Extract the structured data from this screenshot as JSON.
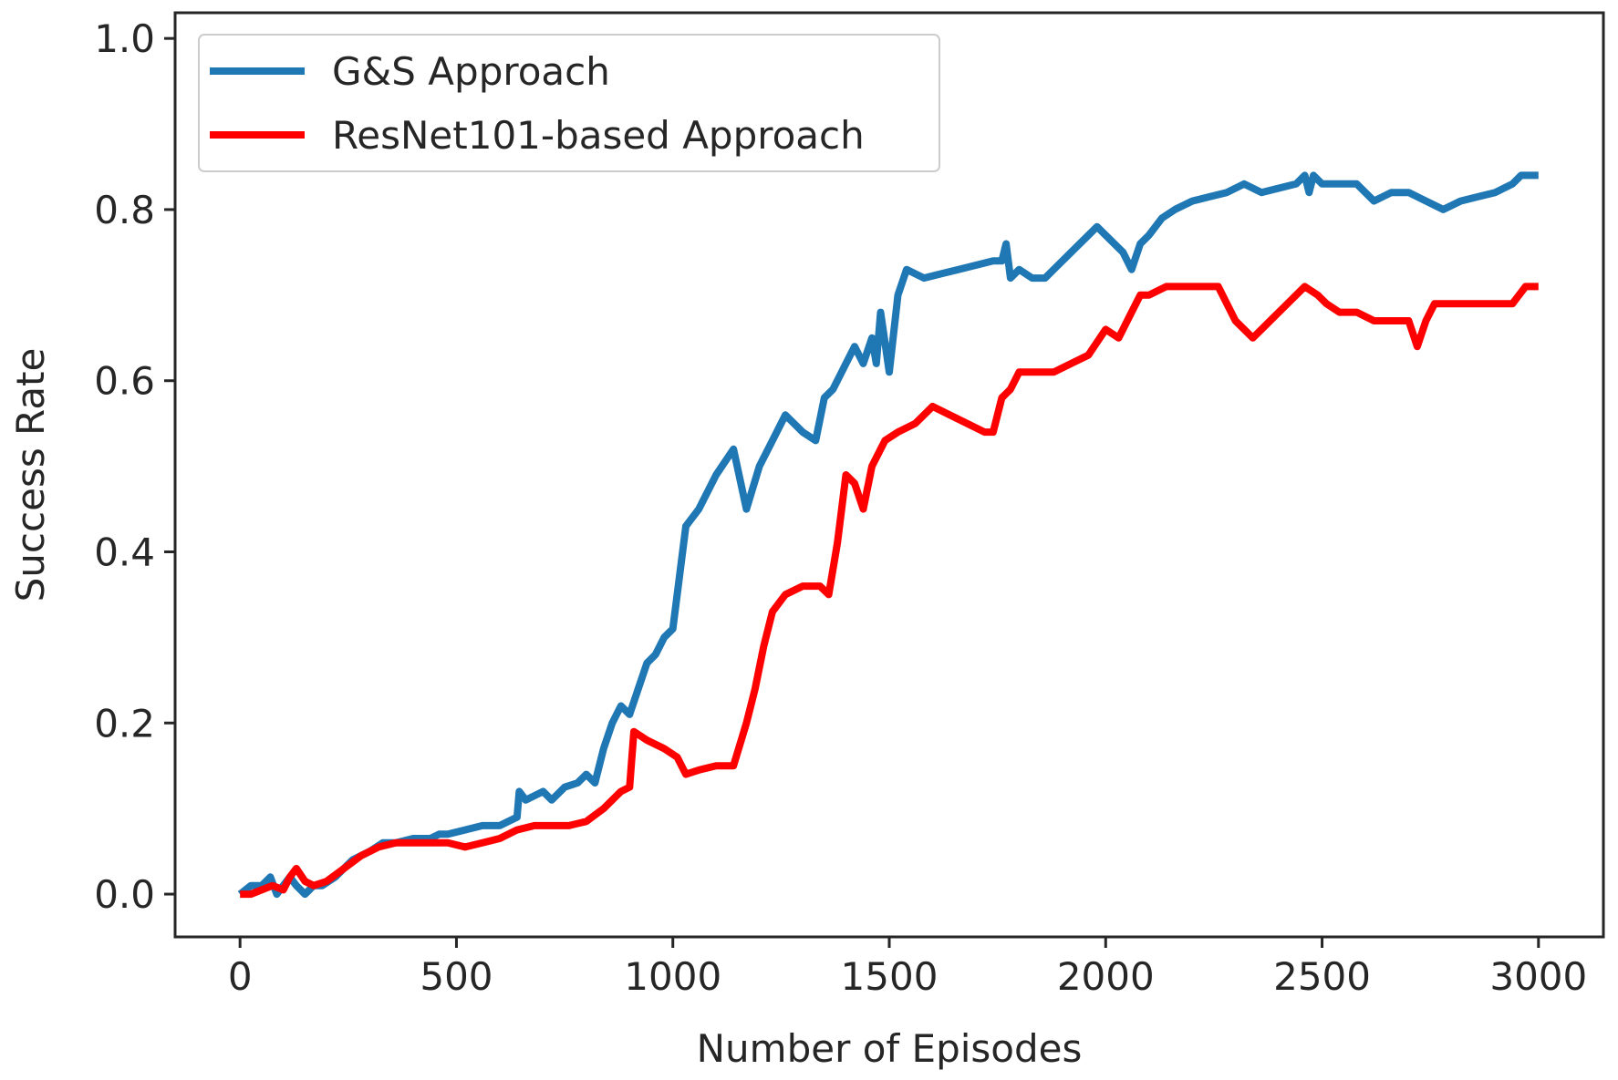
{
  "chart_data": {
    "type": "line",
    "title": "",
    "xlabel": "Number of Episodes",
    "ylabel": "Success Rate",
    "xlim": [
      -150,
      3150
    ],
    "ylim": [
      -0.05,
      1.03
    ],
    "xticks": [
      0,
      500,
      1000,
      1500,
      2000,
      2500,
      3000
    ],
    "xtick_labels": [
      "0",
      "500",
      "1000",
      "1500",
      "2000",
      "2500",
      "3000"
    ],
    "yticks": [
      0.0,
      0.2,
      0.4,
      0.6,
      0.8,
      1.0
    ],
    "ytick_labels": [
      "0.0",
      "0.2",
      "0.4",
      "0.6",
      "0.8",
      "1.0"
    ],
    "grid": false,
    "legend_position": "top-left",
    "series": [
      {
        "name": "G&S Approach",
        "color": "#1f77b4",
        "x": [
          0,
          25,
          50,
          70,
          85,
          100,
          115,
          130,
          150,
          170,
          190,
          220,
          260,
          300,
          330,
          360,
          400,
          440,
          460,
          480,
          520,
          560,
          600,
          640,
          645,
          660,
          700,
          720,
          750,
          780,
          800,
          820,
          840,
          860,
          880,
          900,
          920,
          940,
          960,
          980,
          1000,
          1030,
          1060,
          1100,
          1140,
          1170,
          1200,
          1230,
          1260,
          1300,
          1330,
          1350,
          1370,
          1390,
          1400,
          1420,
          1440,
          1460,
          1470,
          1480,
          1500,
          1520,
          1540,
          1580,
          1620,
          1660,
          1700,
          1740,
          1760,
          1770,
          1780,
          1800,
          1830,
          1860,
          1880,
          1900,
          1920,
          1940,
          1960,
          1980,
          2000,
          2020,
          2040,
          2060,
          2080,
          2100,
          2130,
          2160,
          2200,
          2240,
          2280,
          2320,
          2360,
          2400,
          2440,
          2460,
          2470,
          2480,
          2500,
          2540,
          2580,
          2620,
          2660,
          2700,
          2740,
          2780,
          2820,
          2860,
          2900,
          2940,
          2960,
          2980,
          3000
        ],
        "y": [
          0.0,
          0.01,
          0.01,
          0.02,
          0.0,
          0.01,
          0.02,
          0.01,
          0.0,
          0.01,
          0.01,
          0.02,
          0.04,
          0.05,
          0.06,
          0.06,
          0.065,
          0.065,
          0.07,
          0.07,
          0.075,
          0.08,
          0.08,
          0.09,
          0.12,
          0.11,
          0.12,
          0.11,
          0.125,
          0.13,
          0.14,
          0.13,
          0.17,
          0.2,
          0.22,
          0.21,
          0.24,
          0.27,
          0.28,
          0.3,
          0.31,
          0.43,
          0.45,
          0.49,
          0.52,
          0.45,
          0.5,
          0.53,
          0.56,
          0.54,
          0.53,
          0.58,
          0.59,
          0.61,
          0.62,
          0.64,
          0.62,
          0.65,
          0.62,
          0.68,
          0.61,
          0.7,
          0.73,
          0.72,
          0.725,
          0.73,
          0.735,
          0.74,
          0.74,
          0.76,
          0.72,
          0.73,
          0.72,
          0.72,
          0.73,
          0.74,
          0.75,
          0.76,
          0.77,
          0.78,
          0.77,
          0.76,
          0.75,
          0.73,
          0.76,
          0.77,
          0.79,
          0.8,
          0.81,
          0.815,
          0.82,
          0.83,
          0.82,
          0.825,
          0.83,
          0.84,
          0.82,
          0.84,
          0.83,
          0.83,
          0.83,
          0.81,
          0.82,
          0.82,
          0.81,
          0.8,
          0.81,
          0.815,
          0.82,
          0.83,
          0.84,
          0.84,
          0.84
        ]
      },
      {
        "name": "ResNet101-based Approach",
        "color": "#ff0000",
        "x": [
          0,
          25,
          50,
          75,
          100,
          115,
          130,
          150,
          170,
          200,
          240,
          280,
          320,
          360,
          400,
          440,
          480,
          520,
          560,
          600,
          640,
          680,
          720,
          760,
          800,
          840,
          880,
          900,
          910,
          940,
          980,
          1010,
          1030,
          1060,
          1100,
          1140,
          1170,
          1190,
          1210,
          1230,
          1260,
          1300,
          1340,
          1360,
          1380,
          1400,
          1420,
          1440,
          1460,
          1490,
          1520,
          1560,
          1600,
          1640,
          1680,
          1720,
          1740,
          1760,
          1780,
          1800,
          1840,
          1880,
          1920,
          1960,
          2000,
          2030,
          2060,
          2080,
          2100,
          2140,
          2180,
          2220,
          2260,
          2300,
          2340,
          2380,
          2420,
          2460,
          2490,
          2510,
          2540,
          2580,
          2620,
          2660,
          2700,
          2720,
          2740,
          2760,
          2780,
          2820,
          2860,
          2900,
          2940,
          2970,
          3000
        ],
        "y": [
          0.0,
          0.0,
          0.005,
          0.01,
          0.005,
          0.02,
          0.03,
          0.015,
          0.01,
          0.015,
          0.03,
          0.045,
          0.055,
          0.06,
          0.06,
          0.06,
          0.06,
          0.055,
          0.06,
          0.065,
          0.075,
          0.08,
          0.08,
          0.08,
          0.085,
          0.1,
          0.12,
          0.125,
          0.19,
          0.18,
          0.17,
          0.16,
          0.14,
          0.145,
          0.15,
          0.15,
          0.2,
          0.24,
          0.29,
          0.33,
          0.35,
          0.36,
          0.36,
          0.35,
          0.41,
          0.49,
          0.48,
          0.45,
          0.5,
          0.53,
          0.54,
          0.55,
          0.57,
          0.56,
          0.55,
          0.54,
          0.54,
          0.58,
          0.59,
          0.61,
          0.61,
          0.61,
          0.62,
          0.63,
          0.66,
          0.65,
          0.68,
          0.7,
          0.7,
          0.71,
          0.71,
          0.71,
          0.71,
          0.67,
          0.65,
          0.67,
          0.69,
          0.71,
          0.7,
          0.69,
          0.68,
          0.68,
          0.67,
          0.67,
          0.67,
          0.64,
          0.67,
          0.69,
          0.69,
          0.69,
          0.69,
          0.69,
          0.69,
          0.71,
          0.71
        ]
      }
    ]
  }
}
